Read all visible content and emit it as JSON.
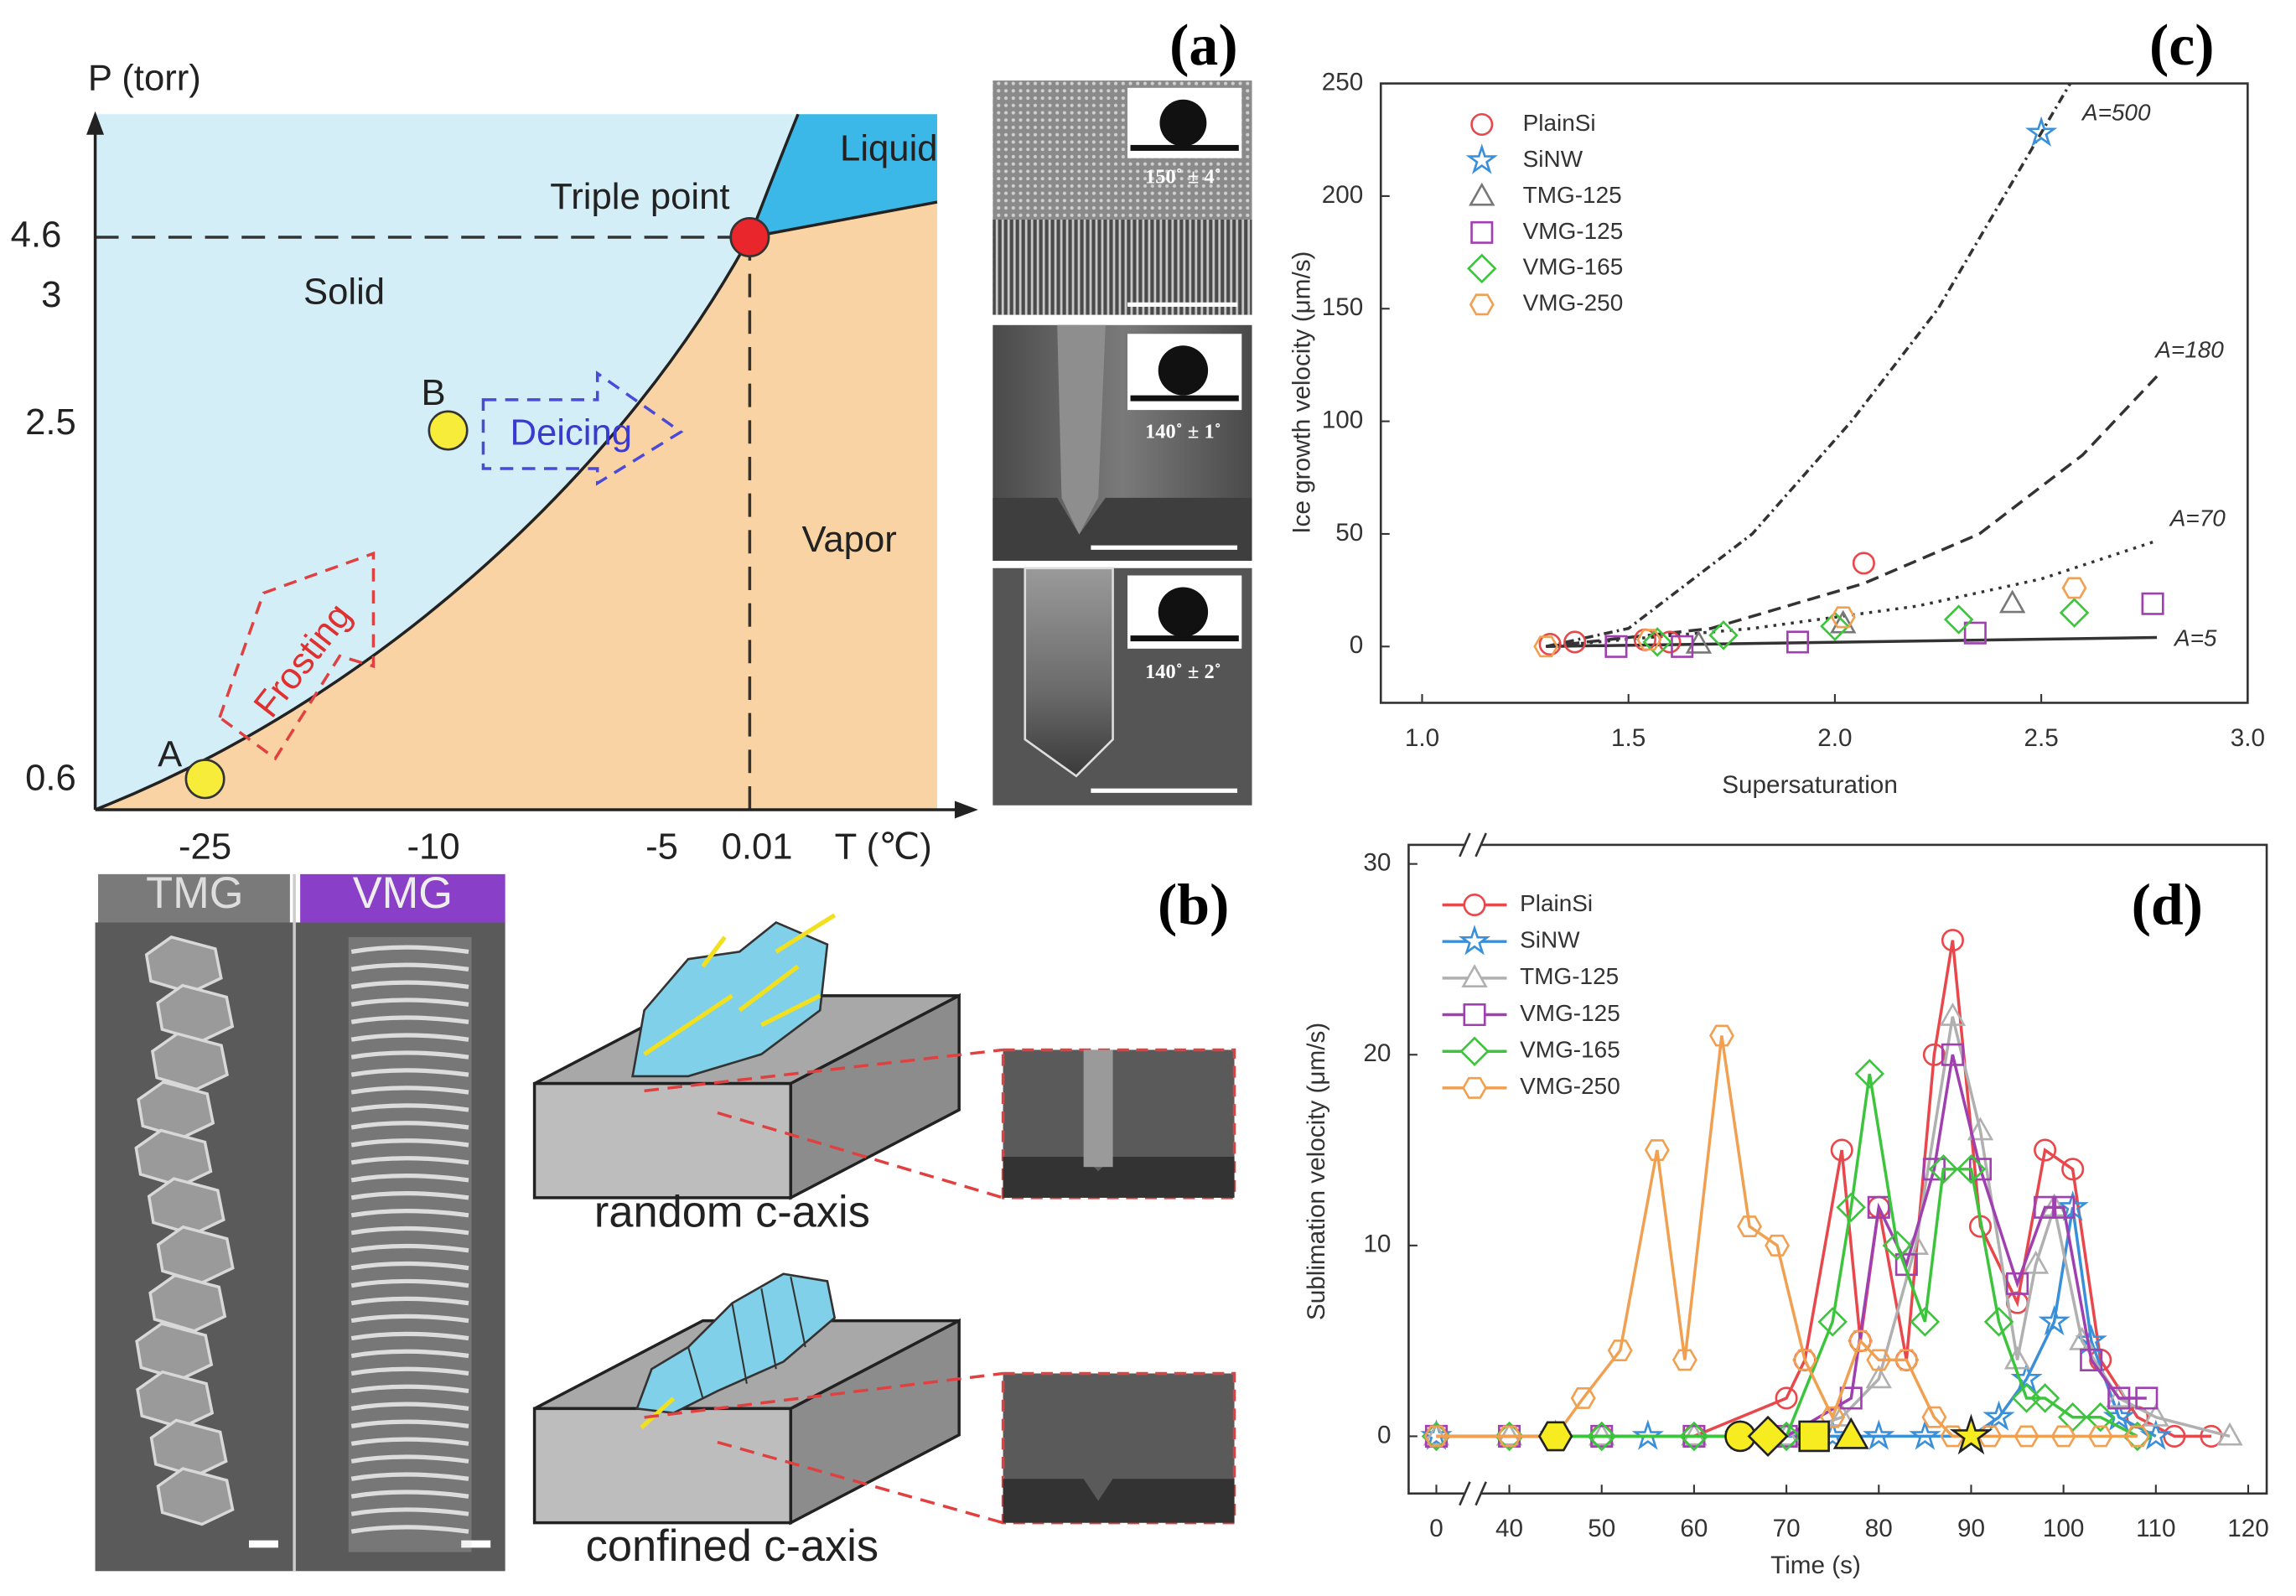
{
  "panel_labels": {
    "a": "(a)",
    "b": "(b)"
  },
  "phase_diagram": {
    "y_axis_label": "P (torr)",
    "x_axis_label": "T (℃)",
    "y_ticks": [
      "4.6",
      "3",
      "2.5",
      "0.6"
    ],
    "x_ticks": [
      "-25",
      "-10",
      "-5",
      "0.01"
    ],
    "regions": {
      "liquid": "Liquid",
      "solid": "Solid",
      "vapor": "Vapor"
    },
    "triple_point": "Triple point",
    "points": {
      "a": "A",
      "b": "B"
    },
    "processes": {
      "deicing": "Deicing",
      "frosting": "Frosting"
    }
  },
  "contact_angles": [
    "150˚ ± 4˚",
    "140˚ ± 1˚",
    "140˚ ± 2˚"
  ],
  "growth_images": {
    "tmg": "TMG",
    "vmg": "VMG"
  },
  "schematics": {
    "random": "random c-axis",
    "confined": "confined c-axis"
  },
  "chart_data": [
    {
      "type": "scatter",
      "panel_label": "(c)",
      "x_label": "Supersaturation",
      "y_label": "Ice growth velocity (μm/s)",
      "xlim": [
        0.9,
        3.0
      ],
      "ylim": [
        -25,
        250
      ],
      "xticks": [
        {
          "value": 1,
          "label": "1.0"
        },
        1.5,
        {
          "value": 2,
          "label": "2.0"
        },
        2.5,
        {
          "value": 3,
          "label": "3.0"
        }
      ],
      "yticks": [
        0,
        50,
        100,
        150,
        200,
        250
      ],
      "legend": "upper left",
      "series": [
        {
          "name": "PlainSi",
          "color": "#e8474b",
          "marker": "circle",
          "x": [
            1.31,
            1.37,
            1.54,
            1.6,
            2.07
          ],
          "values": [
            1,
            2,
            3,
            2,
            37
          ]
        },
        {
          "name": "SiNW",
          "color": "#3a8fd9",
          "marker": "star",
          "x": [
            2.5
          ],
          "values": [
            228
          ]
        },
        {
          "name": "TMG-125",
          "color": "#777777",
          "marker": "triangle",
          "x": [
            1.67,
            2.02,
            2.43
          ],
          "values": [
            1,
            10,
            19
          ]
        },
        {
          "name": "VMG-125",
          "color": "#a040b0",
          "marker": "square",
          "x": [
            1.47,
            1.63,
            1.91,
            2.34,
            2.77
          ],
          "values": [
            0,
            0,
            2,
            6,
            19
          ]
        },
        {
          "name": "VMG-165",
          "color": "#3cc43c",
          "marker": "diamond",
          "x": [
            1.57,
            1.73,
            2.0,
            2.3,
            2.58
          ],
          "values": [
            2,
            5,
            9,
            12,
            15
          ]
        },
        {
          "name": "VMG-250",
          "color": "#f0a050",
          "marker": "hexagon",
          "x": [
            1.3,
            1.55,
            2.02,
            2.58
          ],
          "values": [
            0,
            3,
            13,
            26
          ]
        }
      ],
      "curves": [
        {
          "label": "A=500",
          "dash": "dashdot",
          "x": [
            1.3,
            1.5,
            1.8,
            2.04,
            2.25,
            2.41,
            2.57
          ],
          "values": [
            0,
            8,
            50,
            100,
            150,
            200,
            250
          ]
        },
        {
          "label": "A=180",
          "dash": "dashed",
          "x": [
            1.3,
            1.7,
            2.07,
            2.35,
            2.6,
            2.78
          ],
          "values": [
            0,
            8,
            28,
            50,
            85,
            120
          ]
        },
        {
          "label": "A=70",
          "dash": "dotted",
          "x": [
            1.3,
            1.8,
            2.2,
            2.5,
            2.78
          ],
          "values": [
            0,
            8,
            18,
            30,
            47
          ]
        },
        {
          "label": "A=5",
          "dash": "solid",
          "x": [
            1.3,
            2.78
          ],
          "values": [
            0,
            4
          ]
        }
      ]
    },
    {
      "type": "line",
      "panel_label": "(d)",
      "x_label": "Time (s)",
      "y_label": "Sublimation velocity (μm/s)",
      "xlim": [
        -3,
        122
      ],
      "x_break": [
        3,
        37
      ],
      "ylim": [
        -3,
        31
      ],
      "xticks": [
        0,
        40,
        50,
        60,
        70,
        80,
        90,
        100,
        110,
        120
      ],
      "yticks": [
        0,
        10,
        20,
        30
      ],
      "legend": "upper left",
      "series": [
        {
          "name": "PlainSi",
          "color": "#e8474b",
          "marker": "circle",
          "onset": 65,
          "x": [
            0,
            40,
            50,
            60,
            70,
            72,
            76,
            78,
            80,
            83,
            86,
            88,
            91,
            95,
            98,
            101,
            104,
            108,
            112,
            116
          ],
          "values": [
            0,
            0,
            0,
            0,
            2,
            4,
            15,
            5,
            12,
            4,
            20,
            26,
            11,
            7,
            15,
            14,
            4,
            1,
            0,
            0
          ]
        },
        {
          "name": "SiNW",
          "color": "#3a8fd9",
          "marker": "star",
          "onset": 90,
          "x": [
            0,
            45,
            55,
            65,
            75,
            80,
            85,
            90,
            93,
            96,
            99,
            101,
            103,
            106,
            110
          ],
          "values": [
            0,
            0,
            0,
            0,
            0,
            0,
            0,
            0,
            1,
            3,
            6,
            12,
            5,
            1,
            0
          ]
        },
        {
          "name": "TMG-125",
          "color": "#b0b0b0",
          "marker": "triangle",
          "onset": 77,
          "x": [
            0,
            40,
            50,
            60,
            70,
            76,
            80,
            84,
            88,
            91,
            95,
            97,
            99,
            102,
            106,
            110,
            118
          ],
          "values": [
            0,
            0,
            0,
            0,
            0,
            1,
            3,
            10,
            22,
            16,
            4,
            9,
            12,
            5,
            2,
            1,
            0
          ]
        },
        {
          "name": "VMG-125",
          "color": "#a040b0",
          "marker": "square",
          "onset": 73,
          "x": [
            0,
            40,
            50,
            60,
            70,
            77,
            80,
            83,
            86,
            88,
            91,
            95,
            98,
            100,
            103,
            106,
            109
          ],
          "values": [
            0,
            0,
            0,
            0,
            0,
            2,
            12,
            9,
            14,
            20,
            14,
            8,
            12,
            12,
            4,
            2,
            2
          ]
        },
        {
          "name": "VMG-165",
          "color": "#3cc43c",
          "marker": "diamond",
          "onset": 68,
          "x": [
            0,
            40,
            50,
            60,
            70,
            75,
            77,
            79,
            82,
            85,
            87,
            90,
            93,
            96,
            98,
            101,
            104,
            108
          ],
          "values": [
            0,
            0,
            0,
            0,
            0,
            6,
            12,
            19,
            10,
            6,
            14,
            14,
            6,
            2,
            2,
            1,
            1,
            0
          ]
        },
        {
          "name": "VMG-250",
          "color": "#f0a050",
          "marker": "hexagon",
          "onset": 45,
          "x": [
            0,
            40,
            45,
            48,
            52,
            56,
            59,
            63,
            66,
            69,
            72,
            75,
            78,
            80,
            83,
            86,
            88,
            92,
            96,
            100,
            104,
            108
          ],
          "values": [
            0,
            0,
            0,
            2,
            4.5,
            15,
            4,
            21,
            11,
            10,
            4,
            1,
            5,
            4,
            4,
            1,
            0,
            0,
            0,
            0,
            0,
            0
          ]
        }
      ]
    }
  ]
}
